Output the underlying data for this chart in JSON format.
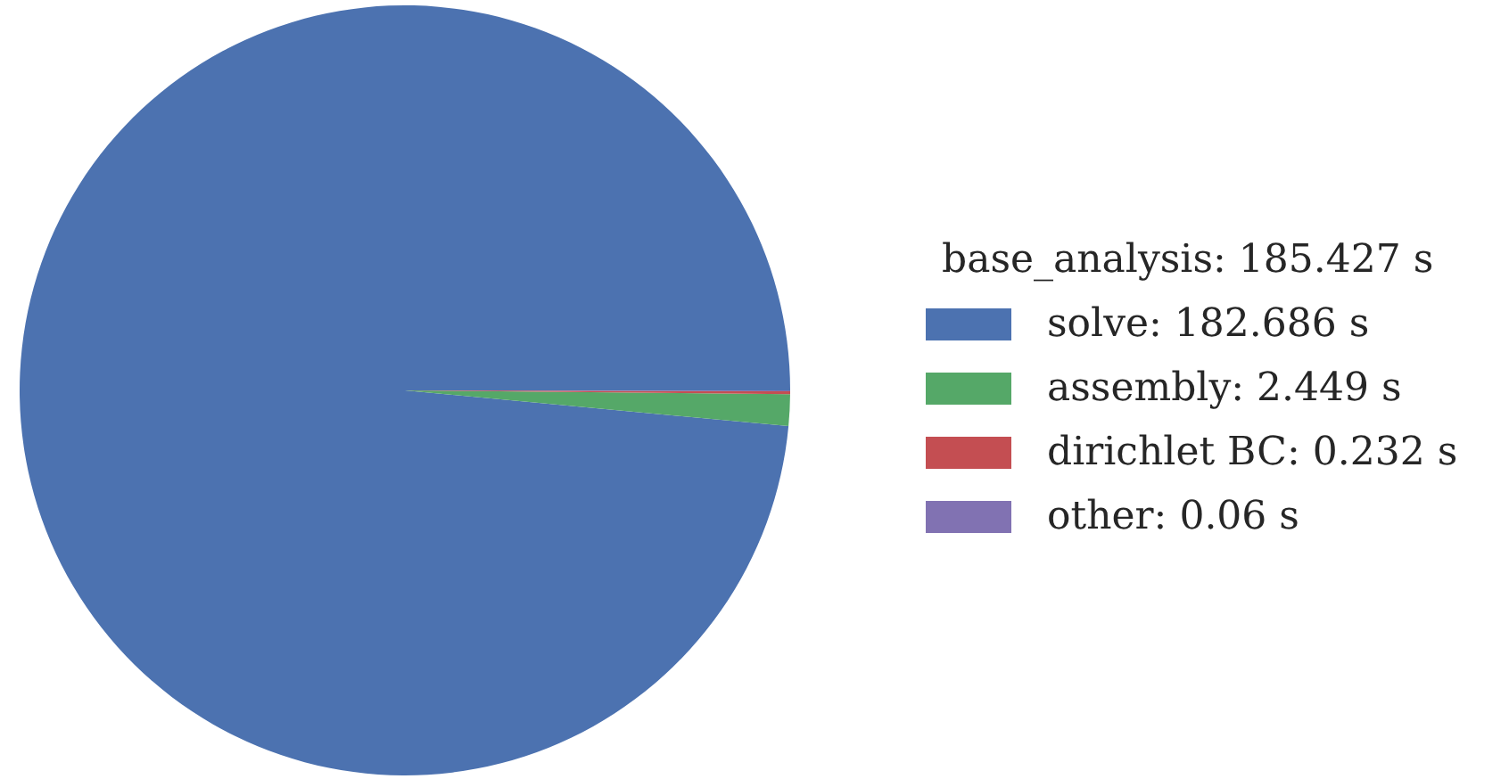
{
  "chart_data": {
    "type": "pie",
    "legend_title": "base_analysis: 185.427 s",
    "categories": [
      "solve",
      "assembly",
      "dirichlet BC",
      "other"
    ],
    "values": [
      182.686,
      2.449,
      0.232,
      0.06
    ],
    "value_labels": [
      "182.686 s",
      "2.449 s",
      "0.232 s",
      "0.06 s"
    ],
    "colors": [
      "#4c72b0",
      "#55a868",
      "#c44e52",
      "#8172b2"
    ],
    "legend": "right"
  }
}
